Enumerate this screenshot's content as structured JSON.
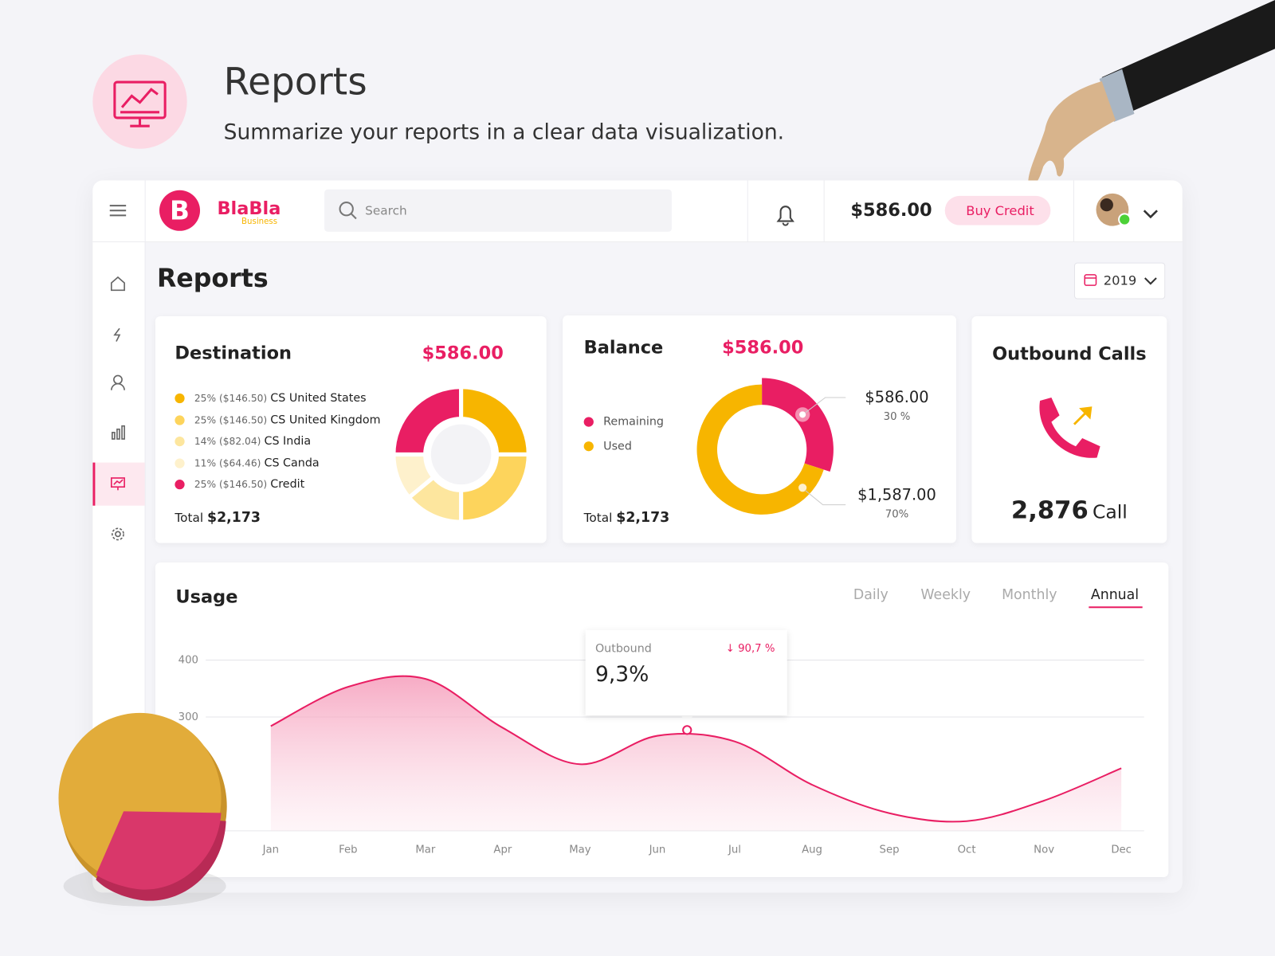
{
  "header": {
    "title": "Reports",
    "subtitle": "Summarize your reports in a clear data visualization."
  },
  "navbar": {
    "brand": "BlaBla",
    "brand_tagline": "Business",
    "search_placeholder": "Search",
    "balance": "$586.00",
    "buy_button": "Buy Credit"
  },
  "page": {
    "title": "Reports",
    "year": "2019"
  },
  "destination": {
    "title": "Destination",
    "amount": "$586.00",
    "total_label": "Total",
    "total": "$2,173",
    "chart": {
      "type": "pie",
      "items": [
        {
          "share": "25% ($146.50)",
          "name": "CS United States",
          "value": 25,
          "color": "#f7b500"
        },
        {
          "share": "25% ($146.50)",
          "name": "CS United Kingdom",
          "value": 25,
          "color": "#fdd45c"
        },
        {
          "share": "14% ($82.04)",
          "name": "CS India",
          "value": 14,
          "color": "#fde69e"
        },
        {
          "share": "11% ($64.46)",
          "name": "CS Canda",
          "value": 11,
          "color": "#fef1cc"
        },
        {
          "share": "25% ($146.50)",
          "name": "Credit",
          "value": 25,
          "color": "#e91e63"
        }
      ]
    }
  },
  "balance": {
    "title": "Balance",
    "amount": "$586.00",
    "total_label": "Total",
    "total": "$2,173",
    "chart": {
      "type": "donut",
      "items": [
        {
          "name": "Remaining",
          "color": "#e91e63",
          "value": 30,
          "value_label": "30 %",
          "amount": "$586.00"
        },
        {
          "name": "Used",
          "color": "#f7b500",
          "value": 70,
          "value_label": "70%",
          "amount": "$1,587.00"
        }
      ]
    }
  },
  "outbound": {
    "title": "Outbound Calls",
    "count": "2,876",
    "unit": "Call"
  },
  "usage": {
    "title": "Usage",
    "tabs": [
      "Daily",
      "Weekly",
      "Monthly",
      "Annual"
    ],
    "active_tab": 3,
    "chart": {
      "type": "area",
      "categories": [
        "Jan",
        "Feb",
        "Mar",
        "Apr",
        "May",
        "Jun",
        "Jul",
        "Aug",
        "Sep",
        "Oct",
        "Nov",
        "Dec"
      ],
      "values": [
        284,
        353,
        367,
        281,
        217,
        267,
        257,
        181,
        131,
        117,
        153,
        210
      ],
      "color": "#e91e63",
      "ylim": [
        100,
        400
      ],
      "yticks": [
        300,
        400
      ],
      "grid": true
    },
    "tooltip": {
      "label": "Outbound",
      "change": "↓ 90,7 %",
      "value": "9,3%"
    }
  }
}
